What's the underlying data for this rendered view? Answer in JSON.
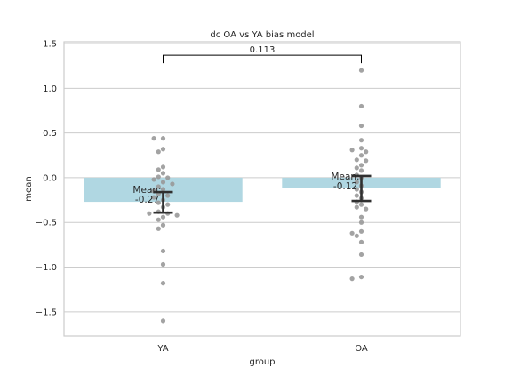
{
  "chart_data": {
    "type": "bar",
    "title": "dc OA vs YA bias model",
    "xlabel": "group",
    "ylabel": "mean",
    "categories": [
      "YA",
      "OA"
    ],
    "values": [
      -0.27,
      -0.12
    ],
    "error_bars": [
      {
        "low": -0.39,
        "high": -0.16
      },
      {
        "low": -0.26,
        "high": 0.02
      }
    ],
    "bar_annotations": [
      {
        "line1": "Mean:",
        "line2": "-0.27"
      },
      {
        "line1": "Mean:",
        "line2": "-0.12"
      }
    ],
    "ylim": [
      -1.77,
      1.52
    ],
    "yticks": [
      1.5,
      1.0,
      0.5,
      0.0,
      -0.5,
      -1.0,
      -1.5
    ],
    "ytick_labels": [
      "1.5",
      "1.0",
      "0.5",
      "0.0",
      "−0.5",
      "−1.0",
      "−1.5"
    ],
    "grid": true,
    "points": [
      {
        "group": "YA",
        "values": [
          0.44,
          0.44,
          0.32,
          0.29,
          0.12,
          0.09,
          0.05,
          0.01,
          0.0,
          -0.02,
          -0.05,
          -0.07,
          -0.1,
          -0.13,
          -0.15,
          -0.18,
          -0.2,
          -0.22,
          -0.25,
          -0.28,
          -0.3,
          -0.33,
          -0.38,
          -0.4,
          -0.4,
          -0.42,
          -0.44,
          -0.47,
          -0.53,
          -0.57,
          -0.82,
          -0.97,
          -1.18,
          -1.6
        ]
      },
      {
        "group": "OA",
        "values": [
          1.2,
          0.8,
          0.58,
          0.42,
          0.33,
          0.31,
          0.29,
          0.25,
          0.2,
          0.19,
          0.14,
          0.11,
          0.08,
          0.03,
          0.0,
          -0.05,
          -0.09,
          -0.13,
          -0.16,
          -0.2,
          -0.23,
          -0.27,
          -0.3,
          -0.33,
          -0.35,
          -0.44,
          -0.5,
          -0.6,
          -0.62,
          -0.65,
          -0.72,
          -0.86,
          -1.11,
          -1.13
        ]
      }
    ],
    "comparison": {
      "between": [
        "YA",
        "OA"
      ],
      "label": "0.113",
      "y": 1.37
    },
    "colors": {
      "bar": "#b0d7e2",
      "point": "#999999",
      "error": "#303030",
      "grid": "#cccccc",
      "frame": "#cccccc",
      "text": "#262626"
    }
  }
}
